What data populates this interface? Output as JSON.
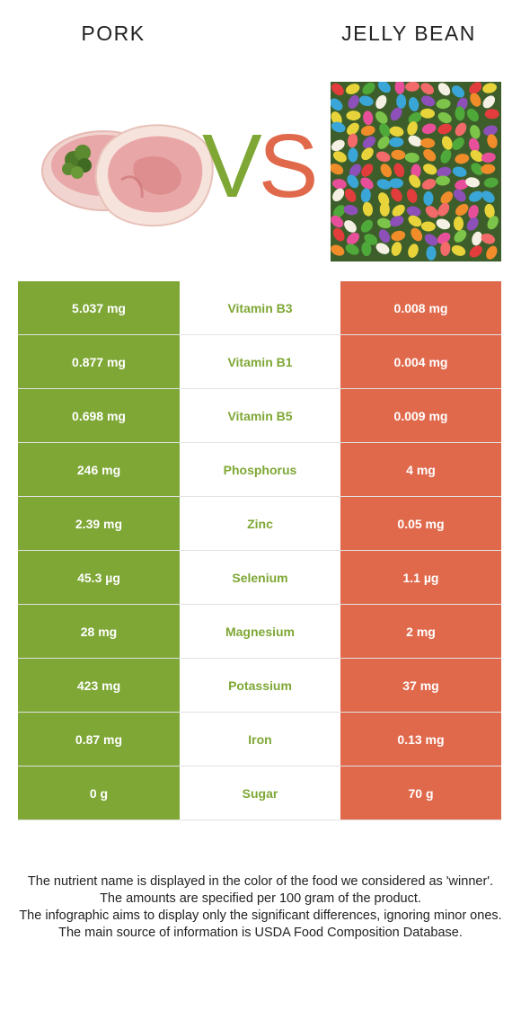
{
  "header": {
    "left_food": "PORK",
    "right_food": "JELLY BEAN",
    "vs_v": "V",
    "vs_s": "S"
  },
  "images": {
    "left": "pork-chop-photo",
    "right": "jelly-beans-photo"
  },
  "colors": {
    "winner_left": "#7ea735",
    "winner_right": "#e0694c"
  },
  "rows": [
    {
      "left": "5.037 mg",
      "nutrient": "Vitamin B3",
      "right": "0.008 mg"
    },
    {
      "left": "0.877 mg",
      "nutrient": "Vitamin B1",
      "right": "0.004 mg"
    },
    {
      "left": "0.698 mg",
      "nutrient": "Vitamin B5",
      "right": "0.009 mg"
    },
    {
      "left": "246 mg",
      "nutrient": "Phosphorus",
      "right": "4 mg"
    },
    {
      "left": "2.39 mg",
      "nutrient": "Zinc",
      "right": "0.05 mg"
    },
    {
      "left": "45.3 µg",
      "nutrient": "Selenium",
      "right": "1.1 µg"
    },
    {
      "left": "28 mg",
      "nutrient": "Magnesium",
      "right": "2 mg"
    },
    {
      "left": "423 mg",
      "nutrient": "Potassium",
      "right": "37 mg"
    },
    {
      "left": "0.87 mg",
      "nutrient": "Iron",
      "right": "0.13 mg"
    },
    {
      "left": "0 g",
      "nutrient": "Sugar",
      "right": "70 g"
    }
  ],
  "footer": {
    "line1": "The nutrient name is displayed in the color of the food we considered as 'winner'.",
    "line2": "The amounts are specified per 100 gram of the product.",
    "line3": "The infographic aims to display only the significant differences, ignoring minor ones.",
    "line4": "The main source of information is USDA Food Composition Database."
  }
}
